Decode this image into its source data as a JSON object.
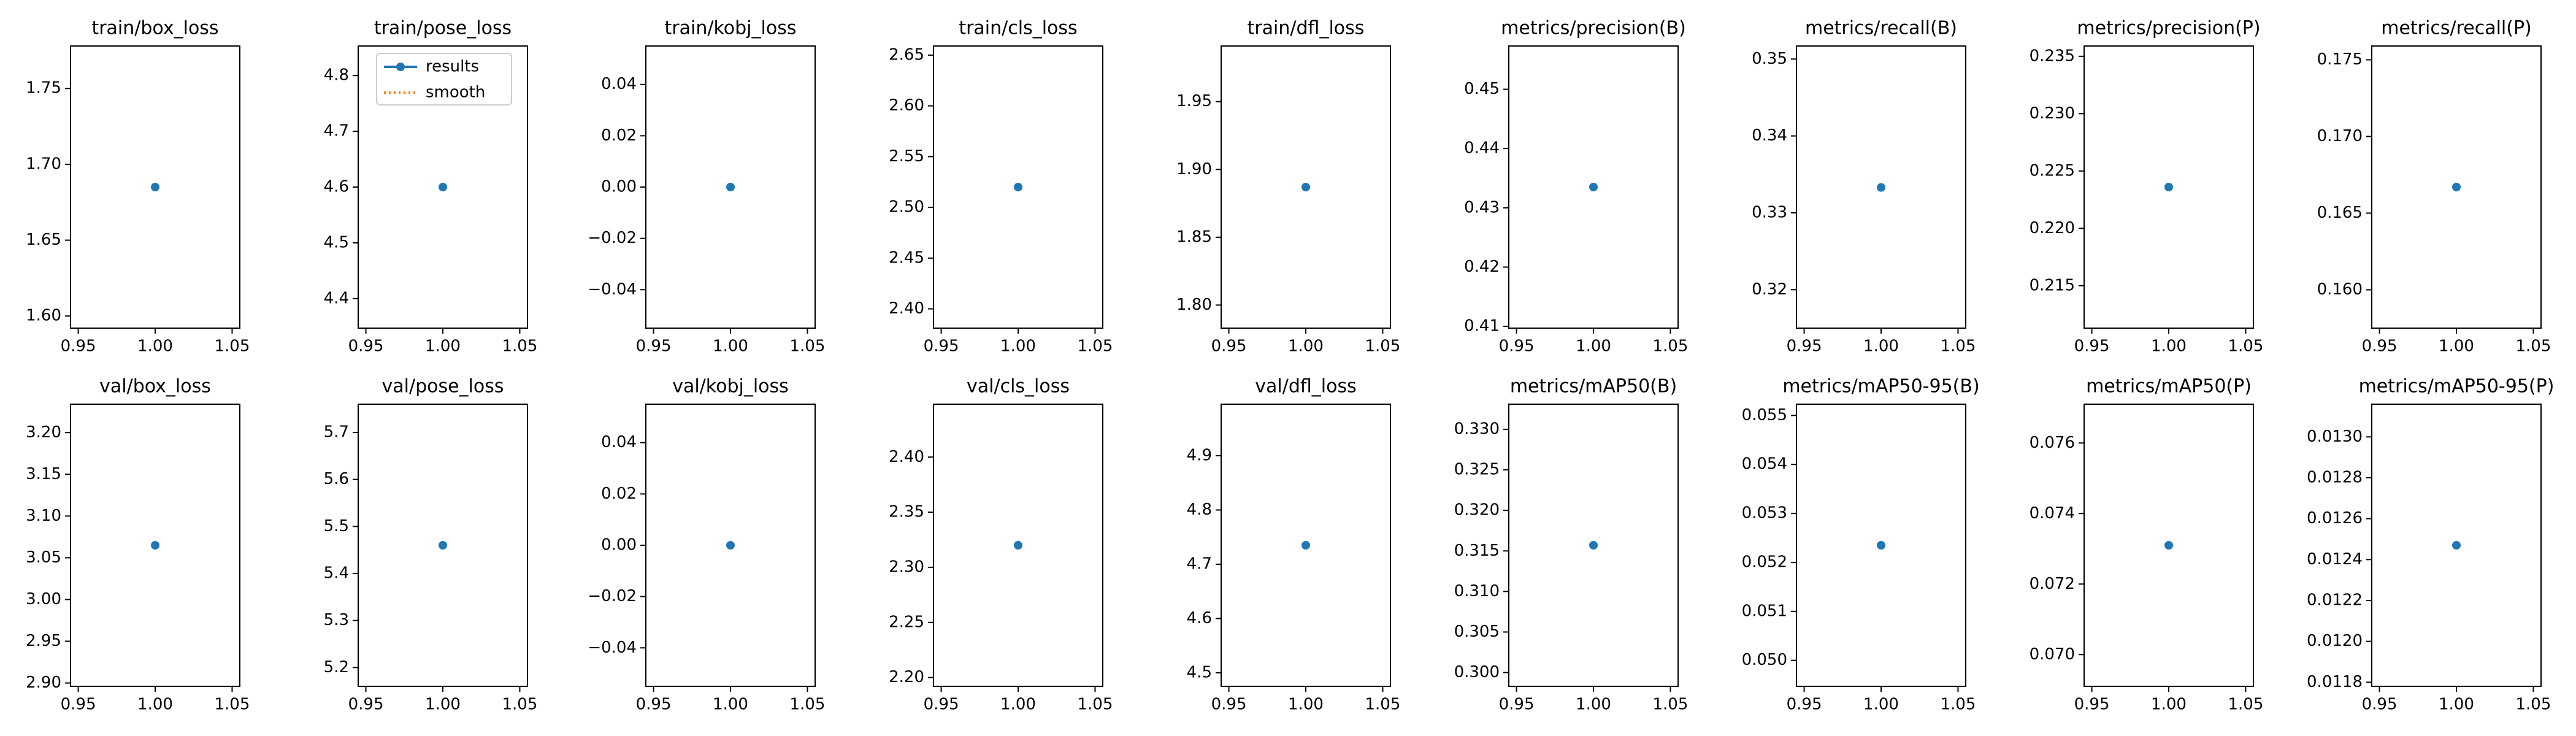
{
  "chart_data": [
    {
      "type": "scatter",
      "title": "train/box_loss",
      "x": [
        1
      ],
      "series": [
        {
          "name": "results",
          "color": "#1f77b4",
          "values": [
            1.685
          ]
        }
      ],
      "xlim": [
        0.945,
        1.055
      ],
      "xticks": [
        0.95,
        {
          "value": 1,
          "label": "1.00"
        },
        1.05
      ],
      "ylim": [
        1.592,
        1.778
      ],
      "yticks": [
        {
          "value": 1.6,
          "label": "1.60"
        },
        1.65,
        {
          "value": 1.7,
          "label": "1.70"
        },
        1.75
      ]
    },
    {
      "type": "scatter",
      "title": "train/pose_loss",
      "x": [
        1
      ],
      "series": [
        {
          "name": "results",
          "color": "#1f77b4",
          "values": [
            4.6
          ]
        },
        {
          "name": "smooth",
          "color": "#ff7f0e",
          "values": [
            null
          ]
        }
      ],
      "legend": "upper left",
      "xlim": [
        0.945,
        1.055
      ],
      "xticks": [
        0.95,
        {
          "value": 1,
          "label": "1.00"
        },
        1.05
      ],
      "ylim": [
        4.347,
        4.853
      ],
      "yticks": [
        4.4,
        4.5,
        4.6,
        4.7,
        4.8
      ]
    },
    {
      "type": "scatter",
      "title": "train/kobj_loss",
      "x": [
        1
      ],
      "series": [
        {
          "name": "results",
          "color": "#1f77b4",
          "values": [
            0
          ]
        }
      ],
      "xlim": [
        0.945,
        1.055
      ],
      "xticks": [
        0.95,
        {
          "value": 1,
          "label": "1.00"
        },
        1.05
      ],
      "ylim": [
        -0.055,
        0.055
      ],
      "yticks": [
        {
          "value": -0.04,
          "label": "−0.04"
        },
        {
          "value": -0.02,
          "label": "−0.02"
        },
        {
          "value": 0,
          "label": "0.00"
        },
        0.02,
        0.04
      ]
    },
    {
      "type": "scatter",
      "title": "train/cls_loss",
      "x": [
        1
      ],
      "series": [
        {
          "name": "results",
          "color": "#1f77b4",
          "values": [
            2.52
          ]
        }
      ],
      "xlim": [
        0.945,
        1.055
      ],
      "xticks": [
        0.95,
        {
          "value": 1,
          "label": "1.00"
        },
        1.05
      ],
      "ylim": [
        2.381,
        2.659
      ],
      "yticks": [
        {
          "value": 2.4,
          "label": "2.40"
        },
        2.45,
        {
          "value": 2.5,
          "label": "2.50"
        },
        2.55,
        {
          "value": 2.6,
          "label": "2.60"
        },
        2.65
      ]
    },
    {
      "type": "scatter",
      "title": "train/dfl_loss",
      "x": [
        1
      ],
      "series": [
        {
          "name": "results",
          "color": "#1f77b4",
          "values": [
            1.887
          ]
        }
      ],
      "xlim": [
        0.945,
        1.055
      ],
      "xticks": [
        0.95,
        {
          "value": 1,
          "label": "1.00"
        },
        1.05
      ],
      "ylim": [
        1.783,
        1.991
      ],
      "yticks": [
        {
          "value": 1.8,
          "label": "1.80"
        },
        1.85,
        {
          "value": 1.9,
          "label": "1.90"
        },
        1.95
      ]
    },
    {
      "type": "scatter",
      "title": "metrics/precision(B)",
      "x": [
        1
      ],
      "series": [
        {
          "name": "results",
          "color": "#1f77b4",
          "values": [
            0.4335
          ]
        }
      ],
      "xlim": [
        0.945,
        1.055
      ],
      "xticks": [
        0.95,
        {
          "value": 1,
          "label": "1.00"
        },
        1.05
      ],
      "ylim": [
        0.4097,
        0.4573
      ],
      "yticks": [
        0.41,
        0.42,
        0.43,
        0.44,
        0.45
      ]
    },
    {
      "type": "scatter",
      "title": "metrics/recall(B)",
      "x": [
        1
      ],
      "series": [
        {
          "name": "results",
          "color": "#1f77b4",
          "values": [
            0.3333
          ]
        }
      ],
      "xlim": [
        0.945,
        1.055
      ],
      "xticks": [
        0.95,
        {
          "value": 1,
          "label": "1.00"
        },
        1.05
      ],
      "ylim": [
        0.315,
        0.3517
      ],
      "yticks": [
        0.32,
        0.33,
        0.34,
        0.35
      ]
    },
    {
      "type": "scatter",
      "title": "metrics/precision(P)",
      "x": [
        1
      ],
      "series": [
        {
          "name": "results",
          "color": "#1f77b4",
          "values": [
            0.2236
          ]
        }
      ],
      "xlim": [
        0.945,
        1.055
      ],
      "xticks": [
        0.95,
        {
          "value": 1,
          "label": "1.00"
        },
        1.05
      ],
      "ylim": [
        0.2113,
        0.2359
      ],
      "yticks": [
        0.215,
        {
          "value": 0.22,
          "label": "0.220"
        },
        0.225,
        {
          "value": 0.23,
          "label": "0.230"
        },
        0.235
      ]
    },
    {
      "type": "scatter",
      "title": "metrics/recall(P)",
      "x": [
        1
      ],
      "series": [
        {
          "name": "results",
          "color": "#1f77b4",
          "values": [
            0.1667
          ]
        }
      ],
      "xlim": [
        0.945,
        1.055
      ],
      "xticks": [
        0.95,
        {
          "value": 1,
          "label": "1.00"
        },
        1.05
      ],
      "ylim": [
        0.1575,
        0.1759
      ],
      "yticks": [
        {
          "value": 0.16,
          "label": "0.160"
        },
        0.165,
        {
          "value": 0.17,
          "label": "0.170"
        },
        0.175
      ]
    },
    {
      "type": "scatter",
      "title": "val/box_loss",
      "x": [
        1
      ],
      "series": [
        {
          "name": "results",
          "color": "#1f77b4",
          "values": [
            3.065
          ]
        }
      ],
      "xlim": [
        0.945,
        1.055
      ],
      "xticks": [
        0.95,
        {
          "value": 1,
          "label": "1.00"
        },
        1.05
      ],
      "ylim": [
        2.896,
        3.234
      ],
      "yticks": [
        {
          "value": 2.9,
          "label": "2.90"
        },
        2.95,
        {
          "value": 3,
          "label": "3.00"
        },
        3.05,
        {
          "value": 3.1,
          "label": "3.10"
        },
        3.15,
        {
          "value": 3.2,
          "label": "3.20"
        }
      ]
    },
    {
      "type": "scatter",
      "title": "val/pose_loss",
      "x": [
        1
      ],
      "series": [
        {
          "name": "results",
          "color": "#1f77b4",
          "values": [
            5.46
          ]
        }
      ],
      "xlim": [
        0.945,
        1.055
      ],
      "xticks": [
        0.95,
        {
          "value": 1,
          "label": "1.00"
        },
        1.05
      ],
      "ylim": [
        5.16,
        5.76
      ],
      "yticks": [
        5.2,
        5.3,
        5.4,
        5.5,
        5.6,
        5.7
      ]
    },
    {
      "type": "scatter",
      "title": "val/kobj_loss",
      "x": [
        1
      ],
      "series": [
        {
          "name": "results",
          "color": "#1f77b4",
          "values": [
            0
          ]
        }
      ],
      "xlim": [
        0.945,
        1.055
      ],
      "xticks": [
        0.95,
        {
          "value": 1,
          "label": "1.00"
        },
        1.05
      ],
      "ylim": [
        -0.055,
        0.055
      ],
      "yticks": [
        {
          "value": -0.04,
          "label": "−0.04"
        },
        {
          "value": -0.02,
          "label": "−0.02"
        },
        {
          "value": 0,
          "label": "0.00"
        },
        0.02,
        0.04
      ]
    },
    {
      "type": "scatter",
      "title": "val/cls_loss",
      "x": [
        1
      ],
      "series": [
        {
          "name": "results",
          "color": "#1f77b4",
          "values": [
            2.32
          ]
        }
      ],
      "xlim": [
        0.945,
        1.055
      ],
      "xticks": [
        0.95,
        {
          "value": 1,
          "label": "1.00"
        },
        1.05
      ],
      "ylim": [
        2.192,
        2.448
      ],
      "yticks": [
        {
          "value": 2.2,
          "label": "2.20"
        },
        2.25,
        {
          "value": 2.3,
          "label": "2.30"
        },
        2.35,
        {
          "value": 2.4,
          "label": "2.40"
        }
      ]
    },
    {
      "type": "scatter",
      "title": "val/dfl_loss",
      "x": [
        1
      ],
      "series": [
        {
          "name": "results",
          "color": "#1f77b4",
          "values": [
            4.735
          ]
        }
      ],
      "xlim": [
        0.945,
        1.055
      ],
      "xticks": [
        0.95,
        {
          "value": 1,
          "label": "1.00"
        },
        1.05
      ],
      "ylim": [
        4.475,
        4.995
      ],
      "yticks": [
        4.5,
        4.6,
        4.7,
        4.8,
        4.9
      ]
    },
    {
      "type": "scatter",
      "title": "metrics/mAP50(B)",
      "x": [
        1
      ],
      "series": [
        {
          "name": "results",
          "color": "#1f77b4",
          "values": [
            0.3157
          ]
        }
      ],
      "xlim": [
        0.945,
        1.055
      ],
      "xticks": [
        0.95,
        {
          "value": 1,
          "label": "1.00"
        },
        1.05
      ],
      "ylim": [
        0.2983,
        0.3331
      ],
      "yticks": [
        {
          "value": 0.3,
          "label": "0.300"
        },
        0.305,
        {
          "value": 0.31,
          "label": "0.310"
        },
        0.315,
        {
          "value": 0.32,
          "label": "0.320"
        },
        0.325,
        {
          "value": 0.33,
          "label": "0.330"
        }
      ]
    },
    {
      "type": "scatter",
      "title": "metrics/mAP50-95(B)",
      "x": [
        1
      ],
      "series": [
        {
          "name": "results",
          "color": "#1f77b4",
          "values": [
            0.05235
          ]
        }
      ],
      "xlim": [
        0.945,
        1.055
      ],
      "xticks": [
        0.95,
        {
          "value": 1,
          "label": "1.00"
        },
        1.05
      ],
      "ylim": [
        0.04947,
        0.05523
      ],
      "yticks": [
        {
          "value": 0.05,
          "label": "0.050"
        },
        0.051,
        0.052,
        0.053,
        0.054,
        0.055
      ]
    },
    {
      "type": "scatter",
      "title": "metrics/mAP50(P)",
      "x": [
        1
      ],
      "series": [
        {
          "name": "results",
          "color": "#1f77b4",
          "values": [
            0.0731
          ]
        }
      ],
      "xlim": [
        0.945,
        1.055
      ],
      "xticks": [
        0.95,
        {
          "value": 1,
          "label": "1.00"
        },
        1.05
      ],
      "ylim": [
        0.0691,
        0.0771
      ],
      "yticks": [
        {
          "value": 0.07,
          "label": "0.070"
        },
        0.072,
        0.074,
        0.076
      ]
    },
    {
      "type": "scatter",
      "title": "metrics/mAP50-95(P)",
      "x": [
        1
      ],
      "series": [
        {
          "name": "results",
          "color": "#1f77b4",
          "values": [
            0.01247
          ]
        }
      ],
      "xlim": [
        0.945,
        1.055
      ],
      "xticks": [
        0.95,
        {
          "value": 1,
          "label": "1.00"
        },
        1.05
      ],
      "ylim": [
        0.01178,
        0.01316
      ],
      "yticks": [
        0.0118,
        {
          "value": 0.012,
          "label": "0.0120"
        },
        0.0122,
        0.0124,
        0.0126,
        0.0128,
        {
          "value": 0.013,
          "label": "0.0130"
        }
      ]
    }
  ]
}
